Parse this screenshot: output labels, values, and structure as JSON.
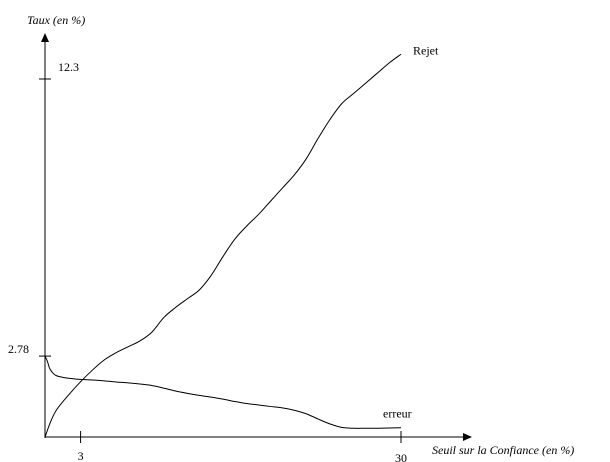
{
  "chart_data": {
    "type": "line",
    "ylabel": "Taux (en %)",
    "xlabel": "Seuil sur la Confiance (en %)",
    "x_ticks": [
      3,
      30
    ],
    "y_ticks": [
      2.78,
      12.3
    ],
    "x_tick_labels": [
      "3",
      "30"
    ],
    "y_tick_labels": [
      "2.78",
      "12.3"
    ],
    "xlim": [
      0,
      35
    ],
    "ylim": [
      0,
      15
    ],
    "grid": false,
    "series": [
      {
        "name": "Rejet",
        "x": [
          0,
          0.5,
          1,
          2,
          3,
          4,
          5,
          6,
          7,
          8,
          9,
          10,
          11,
          12,
          13,
          14,
          15,
          16,
          17,
          18,
          19,
          20,
          21,
          22,
          23,
          24,
          25,
          26,
          27,
          28,
          29,
          30
        ],
        "y": [
          0,
          0.55,
          0.95,
          1.45,
          1.9,
          2.3,
          2.65,
          2.9,
          3.1,
          3.3,
          3.6,
          4.1,
          4.45,
          4.75,
          5.05,
          5.55,
          6.2,
          6.8,
          7.25,
          7.65,
          8.1,
          8.55,
          9.0,
          9.55,
          10.25,
          10.9,
          11.45,
          11.8,
          12.15,
          12.5,
          12.85,
          13.15
        ]
      },
      {
        "name": "erreur",
        "x": [
          0,
          0.2,
          0.4,
          0.7,
          1,
          1.5,
          2,
          3,
          4,
          5,
          6,
          7,
          8,
          9,
          10,
          11,
          12,
          13,
          14,
          15,
          16,
          17,
          18,
          19,
          20,
          21,
          22,
          23,
          24,
          25,
          26,
          27,
          28,
          29,
          30
        ],
        "y": [
          2.78,
          2.6,
          2.35,
          2.18,
          2.1,
          2.05,
          2.02,
          1.98,
          1.96,
          1.93,
          1.89,
          1.86,
          1.82,
          1.77,
          1.68,
          1.58,
          1.5,
          1.43,
          1.37,
          1.3,
          1.22,
          1.15,
          1.1,
          1.05,
          1.0,
          0.92,
          0.8,
          0.62,
          0.45,
          0.33,
          0.3,
          0.3,
          0.3,
          0.31,
          0.32
        ]
      }
    ]
  }
}
